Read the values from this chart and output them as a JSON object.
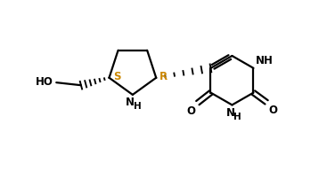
{
  "background_color": "#ffffff",
  "bond_color": "#000000",
  "label_color_S": "#cc8800",
  "label_color_R": "#cc8800",
  "line_width": 1.6,
  "figsize": [
    3.67,
    1.93
  ],
  "dpi": 100,
  "xlim": [
    0,
    9.5
  ],
  "ylim": [
    0,
    4.8
  ]
}
